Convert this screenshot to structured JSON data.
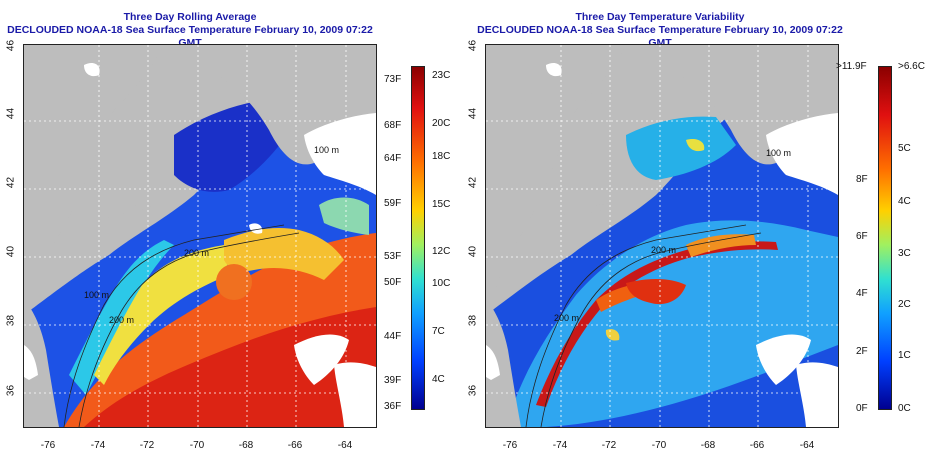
{
  "left_panel": {
    "title_line1": "Three Day Rolling Average",
    "title_line2": "DECLOUDED NOAA-18 Sea Surface Temperature February 10, 2009 07:22 GMT",
    "contour_labels": [
      "100 m",
      "200 m",
      "200 m",
      "100 m"
    ],
    "colorbar_left": [
      "73F",
      "68F",
      "64F",
      "59F",
      "53F",
      "50F",
      "44F",
      "39F",
      "36F"
    ],
    "colorbar_right": [
      "23C",
      "20C",
      "18C",
      "15C",
      "12C",
      "10C",
      "7C",
      "4C"
    ]
  },
  "right_panel": {
    "title_line1": "Three Day Temperature Variability",
    "title_line2": "DECLOUDED NOAA-18 Sea Surface Temperature February 10, 2009 07:22 GMT",
    "contour_labels": [
      "100 m",
      "200 m",
      "200 m"
    ],
    "colorbar_left": [
      ">11.9F",
      "8F",
      "6F",
      "4F",
      "2F",
      "0F"
    ],
    "colorbar_right": [
      ">6.6C",
      "5C",
      "4C",
      "3C",
      "2C",
      "1C",
      "0C"
    ]
  },
  "axes": {
    "longitudes": [
      "-76",
      "-74",
      "-72",
      "-70",
      "-68",
      "-66",
      "-64"
    ],
    "latitudes": [
      "36",
      "38",
      "40",
      "42",
      "44",
      "46"
    ]
  },
  "colors": {
    "title": "#1a1aa8",
    "land": "#bdbdbd",
    "cloud": "#ffffff"
  }
}
